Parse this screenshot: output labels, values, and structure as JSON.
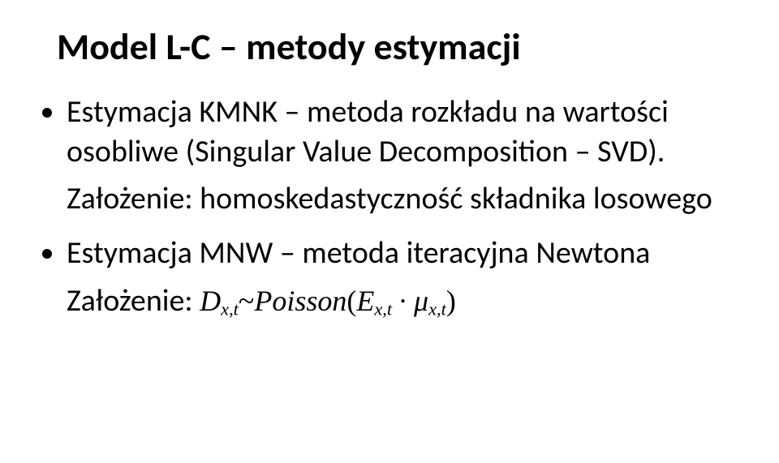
{
  "title": "Model L-C – metody estymacji",
  "bullet1": "Estymacja KMNK – metoda rozkładu na wartości osobliwe (Singular Value Decomposition – SVD).",
  "sub1": "Założenie: homoskedastyczność składnika losowego",
  "bullet2": "Estymacja MNW – metoda iteracyjna Newtona",
  "sub2_prefix": "Założenie: ",
  "formula": {
    "D": "D",
    "sub1": "x,t",
    "tilde": "~",
    "Poisson": "Poisson",
    "lp": "(",
    "E": "E",
    "sub2": "x,t",
    "dot": " ∙ ",
    "mu": "μ",
    "sub3": "x,t",
    "rp": ")"
  }
}
